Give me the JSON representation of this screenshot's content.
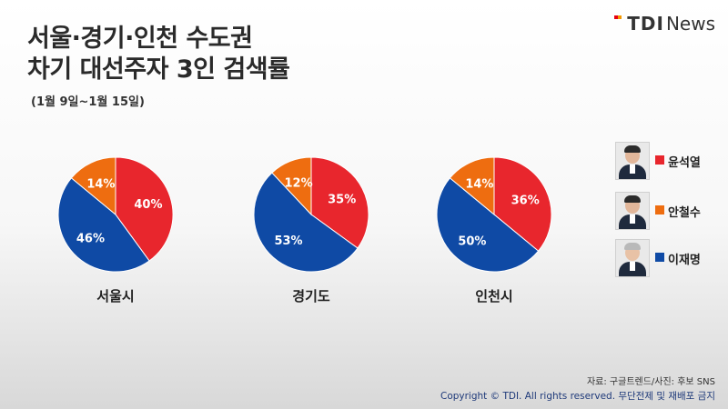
{
  "header": {
    "title_line1": "서울·경기·인천 수도권",
    "title_line2": "차기 대선주자 3인 검색률",
    "subtitle": "(1월 9일~1월 15일)"
  },
  "logo": {
    "brand": "TDI",
    "suffix": "News"
  },
  "legend": [
    {
      "name": "윤석열",
      "color": "#e8262d",
      "avatar": "photo-yoon-icon"
    },
    {
      "name": "안철수",
      "color": "#ee6d10",
      "avatar": "photo-ahn-icon"
    },
    {
      "name": "이재명",
      "color": "#0f4aa5",
      "avatar": "photo-lee-icon"
    }
  ],
  "chart_data": {
    "type": "pie",
    "series_names": [
      "윤석열",
      "안철수",
      "이재명"
    ],
    "colors": [
      "#e8262d",
      "#ee6d10",
      "#0f4aa5"
    ],
    "charts": [
      {
        "label": "서울시",
        "values": {
          "윤석열": 40,
          "안철수": 14,
          "이재명": 46
        }
      },
      {
        "label": "경기도",
        "values": {
          "윤석열": 35,
          "안철수": 12,
          "이재명": 53
        }
      },
      {
        "label": "인천시",
        "values": {
          "윤석열": 36,
          "안철수": 14,
          "이재명": 50
        }
      }
    ],
    "unit": "%"
  },
  "footer": {
    "source": "자료: 구글트렌드/사진: 후보 SNS",
    "copyright": "Copyright © TDI. All rights reserved. 무단전제 및 재배포 금지"
  }
}
